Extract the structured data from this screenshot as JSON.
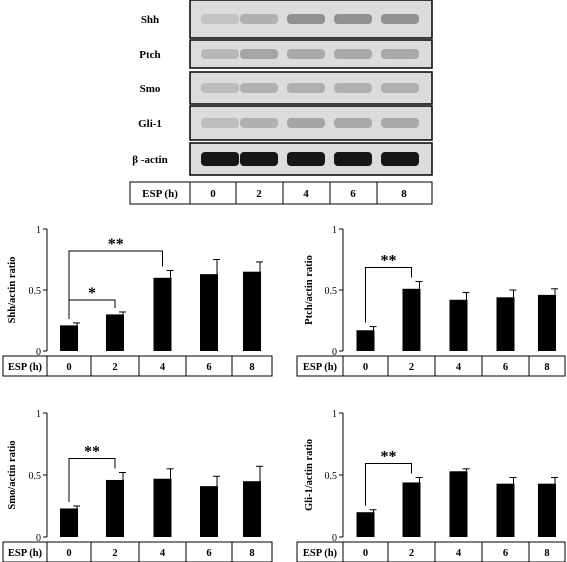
{
  "blot": {
    "proteins": [
      "Shh",
      "Ptch",
      "Smo",
      "Gli-1",
      "β -actin"
    ],
    "esp_label": "ESP (h)",
    "timepoints": [
      "0",
      "2",
      "4",
      "6",
      "8"
    ]
  },
  "chart_data": [
    {
      "type": "bar",
      "ylabel": "Shh/actin  ratio",
      "xlabel": "ESP (h)",
      "categories": [
        "0",
        "2",
        "4",
        "6",
        "8"
      ],
      "values": [
        0.21,
        0.3,
        0.6,
        0.63,
        0.65
      ],
      "errors": [
        0.02,
        0.02,
        0.06,
        0.12,
        0.08
      ],
      "ylim": [
        0,
        1
      ],
      "yticks": [
        "0",
        "0.5",
        "1"
      ],
      "significance": [
        {
          "from": "0",
          "to": "2",
          "label": "*"
        },
        {
          "from": "0",
          "to": "4",
          "label": "**"
        }
      ]
    },
    {
      "type": "bar",
      "ylabel": "Ptch/actin  ratio",
      "xlabel": "ESP (h)",
      "categories": [
        "0",
        "2",
        "4",
        "6",
        "8"
      ],
      "values": [
        0.17,
        0.51,
        0.42,
        0.44,
        0.46
      ],
      "errors": [
        0.03,
        0.06,
        0.06,
        0.06,
        0.05
      ],
      "ylim": [
        0,
        1
      ],
      "yticks": [
        "0",
        "0.5",
        "1"
      ],
      "significance": [
        {
          "from": "0",
          "to": "2",
          "label": "**"
        }
      ]
    },
    {
      "type": "bar",
      "ylabel": "Smo/actin  ratio",
      "xlabel": "ESP (h)",
      "categories": [
        "0",
        "2",
        "4",
        "6",
        "8"
      ],
      "values": [
        0.23,
        0.46,
        0.47,
        0.41,
        0.45
      ],
      "errors": [
        0.02,
        0.06,
        0.08,
        0.08,
        0.12
      ],
      "ylim": [
        0,
        1
      ],
      "yticks": [
        "0",
        "0.5",
        "1"
      ],
      "significance": [
        {
          "from": "0",
          "to": "2",
          "label": "**"
        }
      ]
    },
    {
      "type": "bar",
      "ylabel": "Gli-1/actin  ratio",
      "xlabel": "ESP (h)",
      "categories": [
        "0",
        "2",
        "4",
        "6",
        "8"
      ],
      "values": [
        0.2,
        0.44,
        0.53,
        0.43,
        0.43
      ],
      "errors": [
        0.02,
        0.04,
        0.02,
        0.05,
        0.05
      ],
      "ylim": [
        0,
        1
      ],
      "yticks": [
        "0",
        "0.5",
        "1"
      ],
      "significance": [
        {
          "from": "0",
          "to": "2",
          "label": "**"
        }
      ]
    }
  ]
}
